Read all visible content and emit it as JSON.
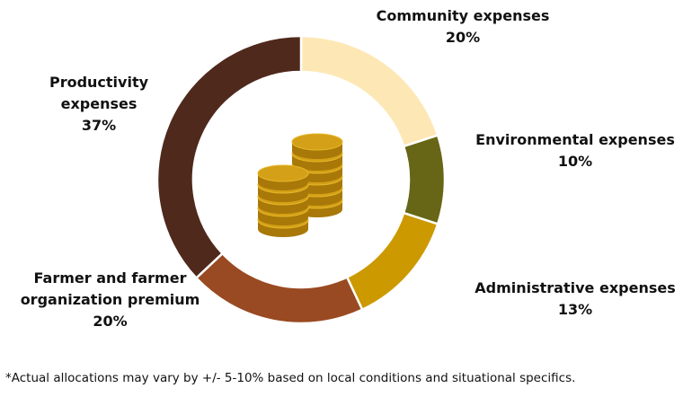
{
  "chart_data": {
    "type": "pie",
    "style": "donut",
    "title": "",
    "slices": [
      {
        "name": "Community expenses",
        "name_lines": [
          "Community expenses"
        ],
        "value": 20,
        "value_label": "20%",
        "color": "#FDE8B5"
      },
      {
        "name": "Environmental expenses",
        "name_lines": [
          "Environmental expenses"
        ],
        "value": 10,
        "value_label": "10%",
        "color": "#666616"
      },
      {
        "name": "Administrative expenses",
        "name_lines": [
          "Administrative expenses"
        ],
        "value": 13,
        "value_label": "13%",
        "color": "#CC9900"
      },
      {
        "name": "Farmer and farmer organization premium",
        "name_lines": [
          "Farmer and farmer",
          "organization premium"
        ],
        "value": 20,
        "value_label": "20%",
        "color": "#994A22"
      },
      {
        "name": "Productivity expenses",
        "name_lines": [
          "Productivity",
          "expenses"
        ],
        "value": 37,
        "value_label": "37%",
        "color": "#4F291C"
      }
    ],
    "center_icon": "coin-stack-icon",
    "footnote": "*Actual allocations may vary by +/- 5-10% based on local conditions and situational specifics."
  }
}
